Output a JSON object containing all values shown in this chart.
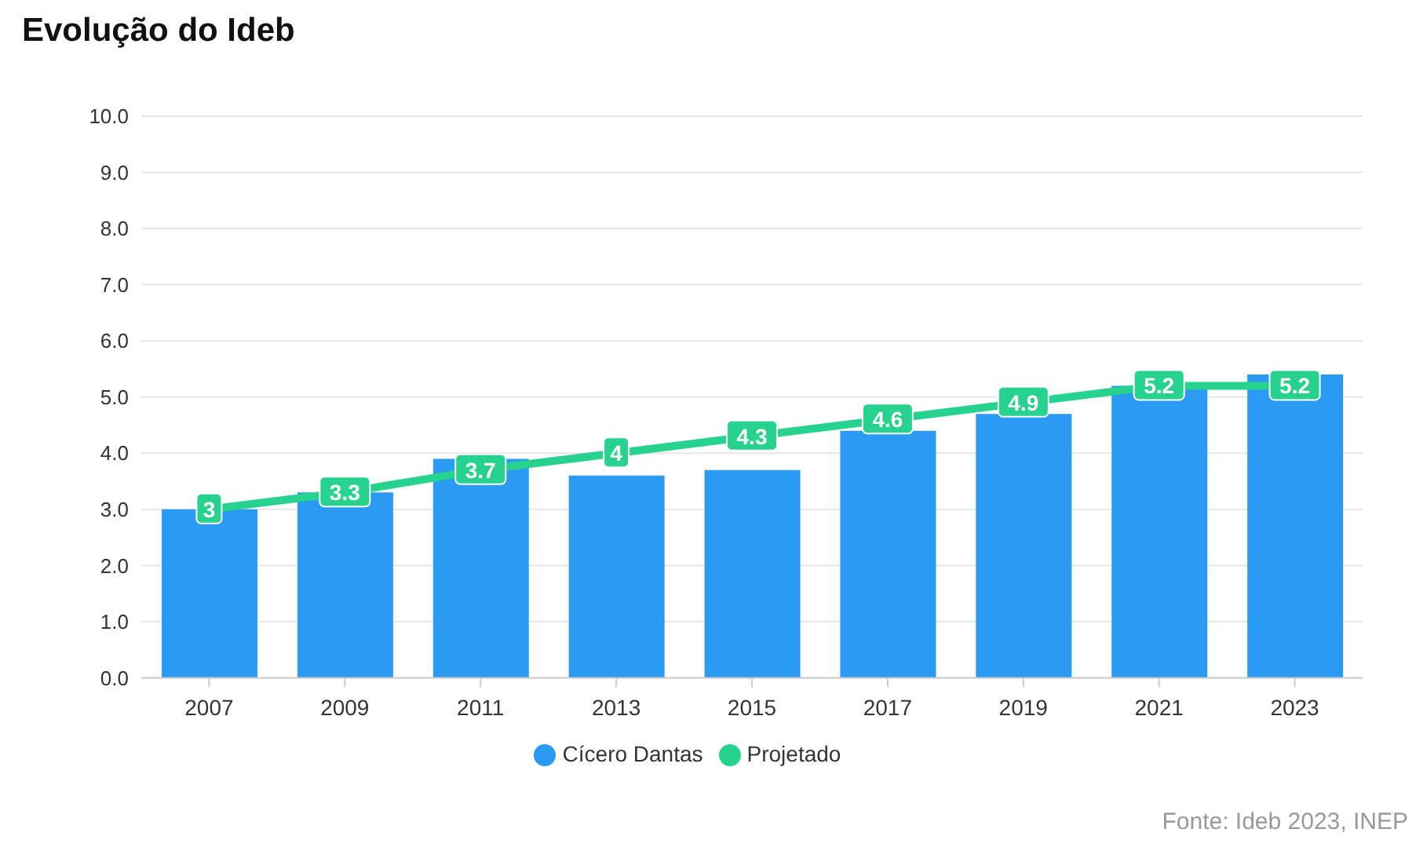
{
  "chart_data": {
    "type": "bar",
    "title": "Evolução do Ideb",
    "categories": [
      "2007",
      "2009",
      "2011",
      "2013",
      "2015",
      "2017",
      "2019",
      "2021",
      "2023"
    ],
    "series": [
      {
        "name": "Cícero Dantas",
        "color": "#2b9af3",
        "values": [
          3.0,
          3.3,
          3.9,
          3.6,
          3.7,
          4.4,
          4.7,
          5.2,
          5.4
        ]
      },
      {
        "name": "Projetado",
        "type": "line",
        "color": "#27d18e",
        "marker": "square",
        "values": [
          3,
          3.3,
          3.7,
          4,
          4.3,
          4.6,
          4.9,
          5.2,
          5.2
        ],
        "value_labels": [
          "3",
          "3.3",
          "3.7",
          "4",
          "4.3",
          "4.6",
          "4.9",
          "5.2",
          "5.2"
        ]
      }
    ],
    "ylim": [
      0,
      10
    ],
    "yticks": [
      {
        "value": 0,
        "label": "0.0"
      },
      {
        "value": 1,
        "label": "1.0"
      },
      {
        "value": 2,
        "label": "2.0"
      },
      {
        "value": 3,
        "label": "3.0"
      },
      {
        "value": 4,
        "label": "4.0"
      },
      {
        "value": 5,
        "label": "5.0"
      },
      {
        "value": 6,
        "label": "6.0"
      },
      {
        "value": 7,
        "label": "7.0"
      },
      {
        "value": 8,
        "label": "8.0"
      },
      {
        "value": 9,
        "label": "9.0"
      },
      {
        "value": 10,
        "label": "10.0"
      }
    ],
    "grid": "y",
    "legend": "bottom",
    "annotations": [
      "Fonte: Ideb 2023, INEP"
    ]
  }
}
